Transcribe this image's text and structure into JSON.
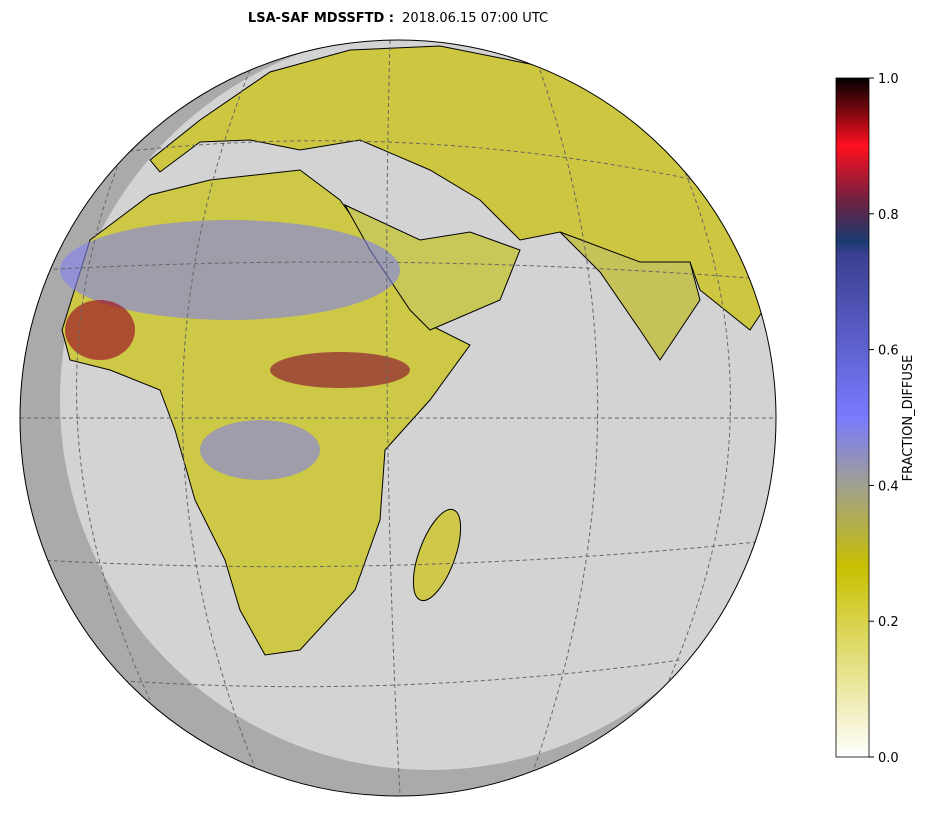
{
  "title": {
    "bold": "LSA-SAF MDSSFTD :",
    "time": "2018.06.15 07:00 UTC"
  },
  "colorbar": {
    "label": "FRACTION_DIFFUSE",
    "lim": [
      0,
      1
    ],
    "ticks": [
      {
        "value": 0,
        "label": "0.0"
      },
      0.2,
      0.4,
      0.6,
      {
        "value": 1,
        "label": "1.0"
      },
      0.8
    ],
    "stops": [
      {
        "value": 0,
        "color": "#ffffff"
      },
      {
        "value": 0.28,
        "color": "#c8c000"
      },
      {
        "value": 0.4,
        "color": "#a0a090"
      },
      {
        "value": 0.5,
        "color": "#7a7aff"
      },
      {
        "value": 0.74,
        "color": "#3a4090"
      },
      {
        "value": 0.76,
        "color": "#1a3a70"
      },
      {
        "value": 0.82,
        "color": "#702040"
      },
      {
        "value": 0.9,
        "color": "#ff1020"
      },
      {
        "value": 1,
        "color": "#000000"
      }
    ]
  }
}
